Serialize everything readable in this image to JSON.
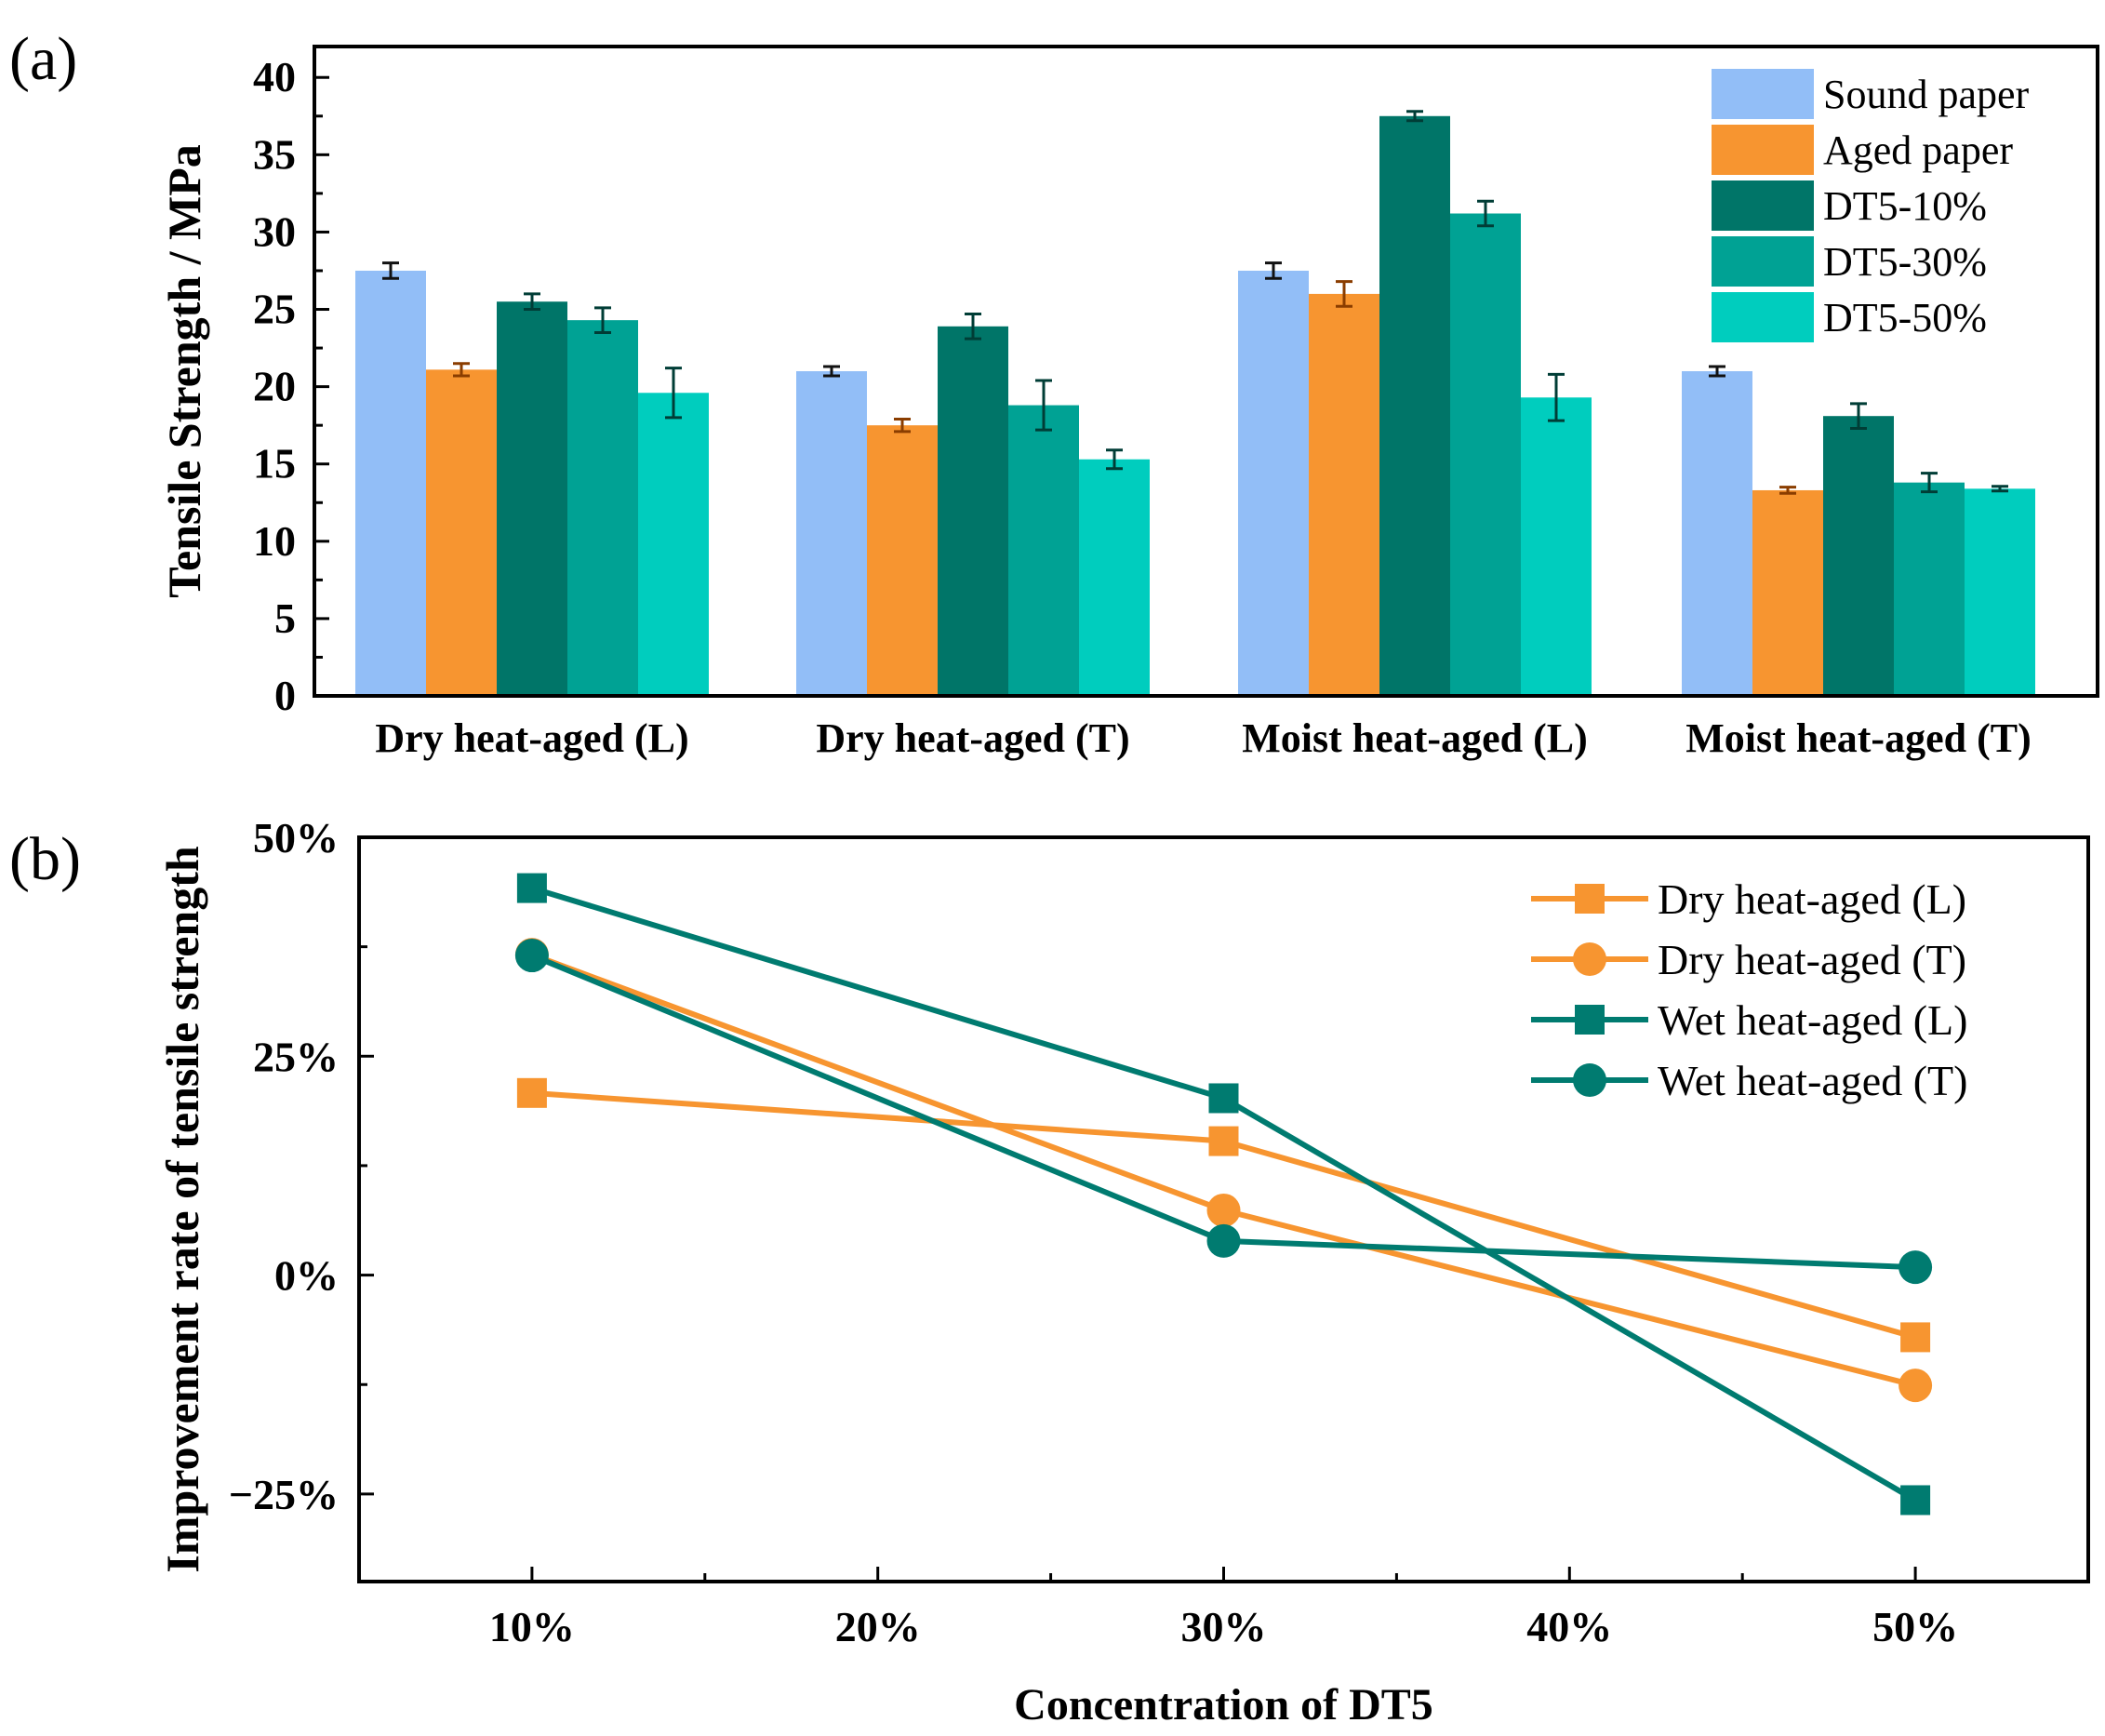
{
  "panels": {
    "a": {
      "letter": "(a)",
      "chart_data": {
        "type": "bar",
        "title": "",
        "xlabel": "",
        "ylabel": "Tensile Strength / MPa",
        "ylim": [
          0,
          42
        ],
        "yticks": [
          0,
          5,
          10,
          15,
          20,
          25,
          30,
          35,
          40
        ],
        "yticklabels": [
          "0",
          "5",
          "10",
          "15",
          "20",
          "25",
          "30",
          "35",
          "40"
        ],
        "categories": [
          "Dry heat-aged (L)",
          "Dry heat-aged (T)",
          "Moist heat-aged (L)",
          "Moist heat-aged (T)"
        ],
        "legend_position": "top-right",
        "series": [
          {
            "name": "Sound paper",
            "color": "#92BEF7",
            "values": [
              27.5,
              21.0,
              27.5,
              21.0
            ],
            "errors": [
              0.5,
              0.3,
              0.5,
              0.3
            ]
          },
          {
            "name": "Aged paper",
            "color": "#F79530",
            "values": [
              21.1,
              17.5,
              26.0,
              13.3
            ],
            "errors": [
              0.4,
              0.4,
              0.8,
              0.2
            ]
          },
          {
            "name": "DT5-10%",
            "color": "#007568",
            "values": [
              25.5,
              23.9,
              37.5,
              18.1
            ],
            "errors": [
              0.5,
              0.8,
              0.3,
              0.8
            ]
          },
          {
            "name": "DT5-30%",
            "color": "#00A294",
            "values": [
              24.3,
              18.8,
              31.2,
              13.8
            ],
            "errors": [
              0.8,
              1.6,
              0.8,
              0.6
            ]
          },
          {
            "name": "DT5-50%",
            "color": "#00CDBE",
            "values": [
              19.6,
              15.3,
              19.3,
              13.4
            ],
            "errors": [
              1.6,
              0.6,
              1.5,
              0.15
            ]
          }
        ]
      }
    },
    "b": {
      "letter": "(b)",
      "chart_data": {
        "type": "line",
        "title": "",
        "xlabel": "Concentration of DT5",
        "ylabel": "Improvement rate of tensile strength",
        "xlim": [
          5,
          55
        ],
        "ylim": [
          -35,
          50
        ],
        "xticks": [
          10,
          20,
          30,
          40,
          50
        ],
        "xticklabels": [
          "10%",
          "20%",
          "30%",
          "40%",
          "50%"
        ],
        "yticks": [
          -25,
          0,
          25,
          50
        ],
        "yticklabels": [
          "−25%",
          "0%",
          "25%",
          "50%"
        ],
        "legend_position": "top-right",
        "series": [
          {
            "name": "Dry heat-aged (L)",
            "marker": "square",
            "color": "#F79530",
            "x": [
              10,
              30,
              50
            ],
            "y": [
              20.8,
              15.3,
              -7.1
            ]
          },
          {
            "name": "Dry heat-aged (T)",
            "marker": "circle",
            "color": "#F79530",
            "x": [
              10,
              30,
              50
            ],
            "y": [
              36.6,
              7.4,
              -12.6
            ]
          },
          {
            "name": "Wet heat-aged (L)",
            "marker": "square",
            "color": "#007B70",
            "x": [
              10,
              30,
              50
            ],
            "y": [
              44.2,
              20.2,
              -25.7
            ]
          },
          {
            "name": "Wet heat-aged (T)",
            "marker": "circle",
            "color": "#007B70",
            "x": [
              10,
              30,
              50
            ],
            "y": [
              36.5,
              3.9,
              0.9
            ]
          }
        ]
      }
    }
  }
}
